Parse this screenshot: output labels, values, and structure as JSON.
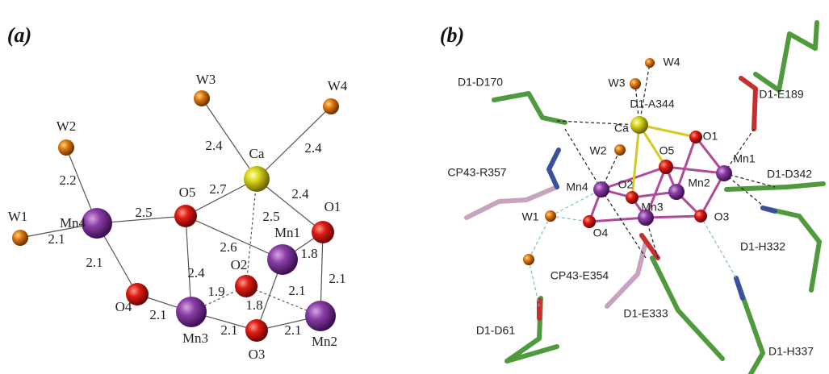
{
  "panels": [
    {
      "label": "(a)",
      "atoms": [
        "W3",
        "W4",
        "W2",
        "W1",
        "Mn4",
        "Ca",
        "O5",
        "O1",
        "Mn1",
        "O2",
        "O4",
        "Mn3",
        "O3",
        "Mn2"
      ],
      "distances": [
        "2.4",
        "2.4",
        "2.2",
        "2.1",
        "2.5",
        "2.7",
        "2.4",
        "2.5",
        "2.6",
        "1.8",
        "2.1",
        "2.4",
        "1.9",
        "2.1",
        "2.1",
        "1.8",
        "2.1",
        "2.1",
        "2.1"
      ]
    },
    {
      "label": "(b)",
      "labels": [
        "D1-D170",
        "W4",
        "W3",
        "D1-A344",
        "D1-E189",
        "Ca",
        "O1",
        "O5",
        "W2",
        "Mn1",
        "CP43-R357",
        "D1-D342",
        "Mn4",
        "O2",
        "Mn2",
        "Mn3",
        "W1",
        "O3",
        "O4",
        "D1-H332",
        "CP43-E354",
        "D1-E333",
        "D1-D61",
        "D1-H337"
      ]
    }
  ]
}
